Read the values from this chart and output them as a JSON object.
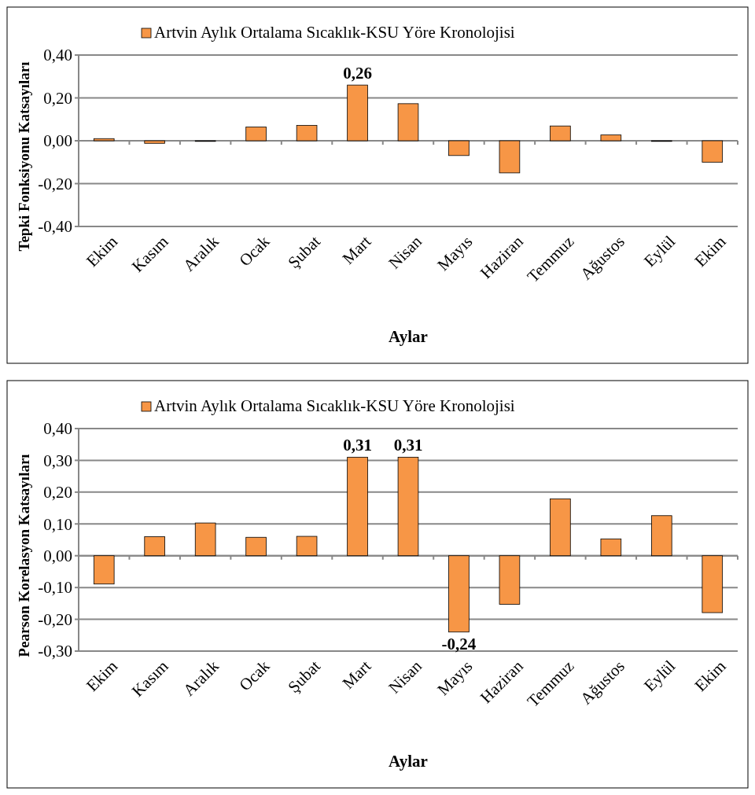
{
  "chart_data": [
    {
      "type": "bar",
      "xlabel": "Aylar",
      "ylabel": "Tepki Fonksiyonu Katsayıları",
      "categories": [
        "Ekim",
        "Kasım",
        "Aralık",
        "Ocak",
        "Şubat",
        "Mart",
        "Nisan",
        "Mayıs",
        "Haziran",
        "Temmuz",
        "Ağustos",
        "Eylül",
        "Ekim"
      ],
      "series": [
        {
          "name": "Artvin Aylık Ortalama Sıcaklık-KSU Yöre Kronolojisi",
          "color": "#f79646",
          "values": [
            0.01,
            -0.012,
            -0.003,
            0.064,
            0.072,
            0.26,
            0.173,
            -0.069,
            -0.15,
            0.069,
            0.027,
            -0.003,
            -0.1
          ],
          "value_labels": [
            null,
            null,
            null,
            null,
            null,
            "0,26",
            null,
            null,
            null,
            null,
            null,
            null,
            null
          ]
        }
      ],
      "ylim": [
        -0.4,
        0.4
      ],
      "yticks": [
        {
          "value": -0.4,
          "label": "-0,40"
        },
        {
          "value": -0.2,
          "label": "-0,20"
        },
        {
          "value": 0,
          "label": "0,00"
        },
        {
          "value": 0.2,
          "label": "0,20"
        },
        {
          "value": 0.4,
          "label": "0,40"
        }
      ],
      "grid": "y",
      "legend": "top"
    },
    {
      "type": "bar",
      "xlabel": "Aylar",
      "ylabel": "Pearson Korelasyon Katsayıları",
      "categories": [
        "Ekim",
        "Kasım",
        "Aralık",
        "Ocak",
        "Şubat",
        "Mart",
        "Nisan",
        "Mayıs",
        "Haziran",
        "Temmuz",
        "Ağustos",
        "Eylül",
        "Ekim"
      ],
      "series": [
        {
          "name": "Artvin Aylık Ortalama Sıcaklık-KSU Yöre Kronolojisi",
          "color": "#f79646",
          "values": [
            -0.089,
            0.06,
            0.103,
            0.058,
            0.061,
            0.31,
            0.31,
            -0.24,
            -0.153,
            0.179,
            0.053,
            0.126,
            -0.179
          ],
          "value_labels": [
            null,
            null,
            null,
            null,
            null,
            "0,31",
            "0,31",
            "-0,24",
            null,
            null,
            null,
            null,
            null
          ]
        }
      ],
      "ylim": [
        -0.3,
        0.4
      ],
      "yticks": [
        {
          "value": -0.3,
          "label": "-0,30"
        },
        {
          "value": -0.2,
          "label": "-0,20"
        },
        {
          "value": -0.1,
          "label": "-0,10"
        },
        {
          "value": 0,
          "label": "0,00"
        },
        {
          "value": 0.1,
          "label": "0,10"
        },
        {
          "value": 0.2,
          "label": "0,20"
        },
        {
          "value": 0.3,
          "label": "0,30"
        },
        {
          "value": 0.4,
          "label": "0,40"
        }
      ],
      "grid": "y",
      "legend": "top"
    }
  ]
}
